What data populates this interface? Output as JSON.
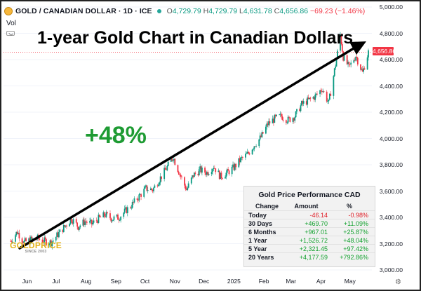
{
  "header": {
    "symbol": "GOLD / CANADIAN DOLLAR · 1D · ICE",
    "open_label": "O",
    "open": "4,729.79",
    "high_label": "H",
    "high": "4,729.79",
    "low_label": "L",
    "low": "4,631.78",
    "close_label": "C",
    "close": "4,656.86",
    "change": "−69.23 (−1.46%)",
    "volume_label": "Vol"
  },
  "headline": "1-year Gold Chart in Canadian Dollars",
  "gain_label": "+48%",
  "watermark": {
    "name": "GOLDPRICE",
    "tagline": "SINCE 2003"
  },
  "colors": {
    "up": "#089981",
    "down": "#f23645",
    "gain": "#1e9b33",
    "arrow": "#000000"
  },
  "price_label": "4,656.86",
  "performance": {
    "title": "Gold Price Performance CAD",
    "headers": [
      "Change",
      "Amount",
      "%"
    ],
    "rows": [
      {
        "period": "Today",
        "amount": "-46.14",
        "pct": "-0.98%",
        "sign": "neg"
      },
      {
        "period": "30 Days",
        "amount": "+469.70",
        "pct": "+11.09%",
        "sign": "pos"
      },
      {
        "period": "6 Months",
        "amount": "+967.01",
        "pct": "+25.87%",
        "sign": "pos"
      },
      {
        "period": "1 Year",
        "amount": "+1,526.72",
        "pct": "+48.04%",
        "sign": "pos"
      },
      {
        "period": "5 Year",
        "amount": "+2,321.45",
        "pct": "+97.42%",
        "sign": "pos"
      },
      {
        "period": "20 Years",
        "amount": "+4,177.59",
        "pct": "+792.86%",
        "sign": "pos"
      }
    ]
  },
  "chart_data": {
    "type": "candlestick",
    "title": "1-year Gold Chart in Canadian Dollars",
    "ylim": [
      3000,
      5000
    ],
    "y_ticks": [
      "5,000.00",
      "4,800.00",
      "4,600.00",
      "4,400.00",
      "4,200.00",
      "4,000.00",
      "3,800.00",
      "3,600.00",
      "3,400.00",
      "3,200.00",
      "3,000.00"
    ],
    "x_ticks": [
      "Jun",
      "Jul",
      "Aug",
      "Sep",
      "Oct",
      "Nov",
      "Dec",
      "2025",
      "Feb",
      "Mar",
      "Apr",
      "May"
    ],
    "close_series": [
      [
        "2024-05-15",
        3220
      ],
      [
        "2024-05-22",
        3290
      ],
      [
        "2024-05-29",
        3210
      ],
      [
        "2024-06-05",
        3230
      ],
      [
        "2024-06-12",
        3240
      ],
      [
        "2024-06-19",
        3220
      ],
      [
        "2024-06-26",
        3210
      ],
      [
        "2024-07-03",
        3270
      ],
      [
        "2024-07-10",
        3330
      ],
      [
        "2024-07-17",
        3390
      ],
      [
        "2024-07-24",
        3330
      ],
      [
        "2024-07-31",
        3370
      ],
      [
        "2024-08-07",
        3350
      ],
      [
        "2024-08-14",
        3390
      ],
      [
        "2024-08-21",
        3420
      ],
      [
        "2024-08-28",
        3390
      ],
      [
        "2024-09-04",
        3400
      ],
      [
        "2024-09-11",
        3450
      ],
      [
        "2024-09-18",
        3500
      ],
      [
        "2024-09-25",
        3560
      ],
      [
        "2024-10-02",
        3620
      ],
      [
        "2024-10-09",
        3610
      ],
      [
        "2024-10-16",
        3690
      ],
      [
        "2024-10-23",
        3770
      ],
      [
        "2024-10-30",
        3860
      ],
      [
        "2024-11-06",
        3730
      ],
      [
        "2024-11-13",
        3610
      ],
      [
        "2024-11-20",
        3720
      ],
      [
        "2024-11-27",
        3760
      ],
      [
        "2024-12-04",
        3740
      ],
      [
        "2024-12-11",
        3790
      ],
      [
        "2024-12-18",
        3710
      ],
      [
        "2024-12-25",
        3740
      ],
      [
        "2025-01-01",
        3780
      ],
      [
        "2025-01-08",
        3840
      ],
      [
        "2025-01-15",
        3880
      ],
      [
        "2025-01-22",
        3950
      ],
      [
        "2025-01-29",
        4010
      ],
      [
        "2025-02-05",
        4110
      ],
      [
        "2025-02-12",
        4150
      ],
      [
        "2025-02-19",
        4170
      ],
      [
        "2025-02-26",
        4140
      ],
      [
        "2025-03-05",
        4170
      ],
      [
        "2025-03-12",
        4260
      ],
      [
        "2025-03-19",
        4290
      ],
      [
        "2025-03-26",
        4320
      ],
      [
        "2025-04-02",
        4380
      ],
      [
        "2025-04-09",
        4270
      ],
      [
        "2025-04-16",
        4560
      ],
      [
        "2025-04-21",
        4790
      ],
      [
        "2025-04-24",
        4620
      ],
      [
        "2025-04-30",
        4540
      ],
      [
        "2025-05-07",
        4630
      ],
      [
        "2025-05-14",
        4500
      ],
      [
        "2025-05-20",
        4657
      ]
    ],
    "annotations": [
      "1-year Gold Chart in Canadian Dollars",
      "+48%"
    ],
    "last_price": 4656.86
  }
}
